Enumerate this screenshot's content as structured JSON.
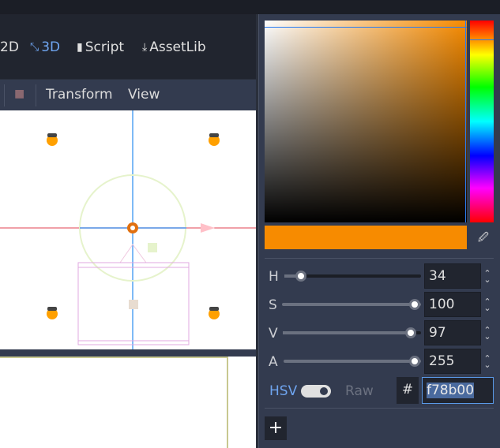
{
  "main_tabs": [
    {
      "label": "2D",
      "icon": "2d-icon"
    },
    {
      "label": "3D",
      "icon": "3d-icon",
      "active": true
    },
    {
      "label": "Script",
      "icon": "script-icon"
    },
    {
      "label": "AssetLib",
      "icon": "download-icon"
    }
  ],
  "toolbar": {
    "menus": [
      "Transform",
      "View"
    ],
    "icon": "camera-icon"
  },
  "color_picker": {
    "color": "#f78b00",
    "sliders": [
      {
        "label": "H",
        "value": "34",
        "fraction": 0.094
      },
      {
        "label": "S",
        "value": "100",
        "fraction": 1.0
      },
      {
        "label": "V",
        "value": "97",
        "fraction": 0.97
      },
      {
        "label": "A",
        "value": "255",
        "fraction": 1.0
      }
    ],
    "mode_label": "HSV",
    "raw_label": "Raw",
    "hex_prefix": "#",
    "hex_value": "f78b00",
    "add_label": "+"
  }
}
